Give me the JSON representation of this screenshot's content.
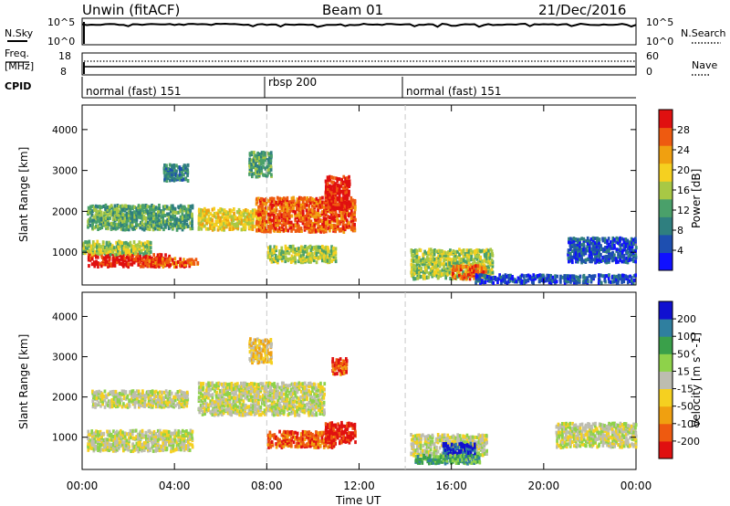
{
  "header": {
    "station": "Unwin (fitACF)",
    "beam": "Beam 01",
    "date": "21/Dec/2016"
  },
  "top_panels": {
    "nsky_label": "N.Sky",
    "nsearch_label": "N.Search",
    "nsky_ticks": [
      "10^5",
      "10^0"
    ],
    "nsky_right_ticks": [
      "10^5",
      "10^0"
    ],
    "freq_label": "Freq.",
    "freq_unit": "[MHz]",
    "freq_ticks": [
      "18",
      "8"
    ],
    "nave_ticks": [
      "60",
      "0"
    ],
    "nave_label": "Nave",
    "cpid_label": "CPID",
    "modes": [
      {
        "label": "normal (fast) 151",
        "start_hour": 0,
        "end_hour": 8
      },
      {
        "label": "rbsp 200",
        "start_hour": 8,
        "end_hour": 14
      },
      {
        "label": "normal (fast) 151",
        "start_hour": 14,
        "end_hour": 24
      }
    ]
  },
  "chart_data": [
    {
      "type": "heatmap",
      "name": "power",
      "ylabel": "Slant Range [km]",
      "xlim": [
        0,
        24
      ],
      "ylim": [
        200,
        4600
      ],
      "yticks": [
        "1000",
        "2000",
        "3000",
        "4000"
      ],
      "colorbar_label": "Power [dB]",
      "colorbar_ticks": [
        "28",
        "24",
        "20",
        "16",
        "12",
        "8",
        "4"
      ],
      "colorscale": [
        "#1010ff",
        "#1e4fb0",
        "#2f7f7f",
        "#4aa06a",
        "#a8c845",
        "#f5d020",
        "#f0a010",
        "#ee5a10",
        "#e01010"
      ],
      "clusters": [
        {
          "t": [
            0.2,
            3.8
          ],
          "r": [
            600,
            900
          ],
          "level": 8
        },
        {
          "t": [
            0.0,
            3.0
          ],
          "r": [
            900,
            1200
          ],
          "level": 4
        },
        {
          "t": [
            0.2,
            4.8
          ],
          "r": [
            1500,
            2100
          ],
          "level": 3
        },
        {
          "t": [
            2.6,
            5.0
          ],
          "r": [
            600,
            800
          ],
          "level": 7
        },
        {
          "t": [
            3.5,
            4.6
          ],
          "r": [
            2700,
            3100
          ],
          "level": 2
        },
        {
          "t": [
            5.0,
            8.0
          ],
          "r": [
            1500,
            2000
          ],
          "level": 5
        },
        {
          "t": [
            7.5,
            11.8
          ],
          "r": [
            1450,
            2300
          ],
          "level": 7
        },
        {
          "t": [
            10.5,
            11.6
          ],
          "r": [
            2000,
            2800
          ],
          "level": 8
        },
        {
          "t": [
            8.0,
            11.0
          ],
          "r": [
            700,
            1100
          ],
          "level": 4
        },
        {
          "t": [
            7.2,
            8.2
          ],
          "r": [
            2800,
            3400
          ],
          "level": 3
        },
        {
          "t": [
            14.2,
            17.8
          ],
          "r": [
            300,
            1000
          ],
          "level": 4
        },
        {
          "t": [
            16.0,
            17.5
          ],
          "r": [
            300,
            600
          ],
          "level": 7
        },
        {
          "t": [
            21.0,
            24.0
          ],
          "r": [
            700,
            1300
          ],
          "level": 1
        },
        {
          "t": [
            17.0,
            24.0
          ],
          "r": [
            200,
            400
          ],
          "level": 1
        }
      ]
    },
    {
      "type": "heatmap",
      "name": "velocity",
      "ylabel": "Slant Range [km]",
      "xlabel": "Time UT",
      "xlim": [
        0,
        24
      ],
      "ylim": [
        200,
        4600
      ],
      "xticks": [
        "00:00",
        "04:00",
        "08:00",
        "12:00",
        "16:00",
        "20:00",
        "00:00"
      ],
      "yticks": [
        "1000",
        "2000",
        "3000",
        "4000"
      ],
      "colorbar_label": "Velocity [m s^-1]",
      "colorbar_ticks": [
        "200",
        "100",
        "50",
        "15",
        "-15",
        "-50",
        "-100",
        "-200"
      ],
      "colorscale": [
        "#e01010",
        "#ee5a10",
        "#f0a010",
        "#f5d020",
        "#bdbdb0",
        "#8ed24a",
        "#3aa04a",
        "#2f7f9f",
        "#1010d0"
      ],
      "clusters": [
        {
          "t": [
            0.2,
            4.8
          ],
          "r": [
            600,
            1100
          ],
          "level": 4
        },
        {
          "t": [
            0.4,
            4.6
          ],
          "r": [
            1700,
            2100
          ],
          "level": 4
        },
        {
          "t": [
            5.0,
            10.5
          ],
          "r": [
            1500,
            2300
          ],
          "level": 4
        },
        {
          "t": [
            8.0,
            11.0
          ],
          "r": [
            700,
            1100
          ],
          "level": 1
        },
        {
          "t": [
            10.5,
            11.8
          ],
          "r": [
            800,
            1300
          ],
          "level": 0
        },
        {
          "t": [
            10.8,
            11.5
          ],
          "r": [
            2500,
            2900
          ],
          "level": 1
        },
        {
          "t": [
            7.2,
            8.2
          ],
          "r": [
            2800,
            3400
          ],
          "level": 3
        },
        {
          "t": [
            14.2,
            17.5
          ],
          "r": [
            500,
            1000
          ],
          "level": 4
        },
        {
          "t": [
            15.6,
            17.0
          ],
          "r": [
            400,
            800
          ],
          "level": 8
        },
        {
          "t": [
            14.4,
            17.2
          ],
          "r": [
            300,
            500
          ],
          "level": 6
        },
        {
          "t": [
            20.5,
            24.0
          ],
          "r": [
            700,
            1300
          ],
          "level": 4
        }
      ]
    }
  ]
}
